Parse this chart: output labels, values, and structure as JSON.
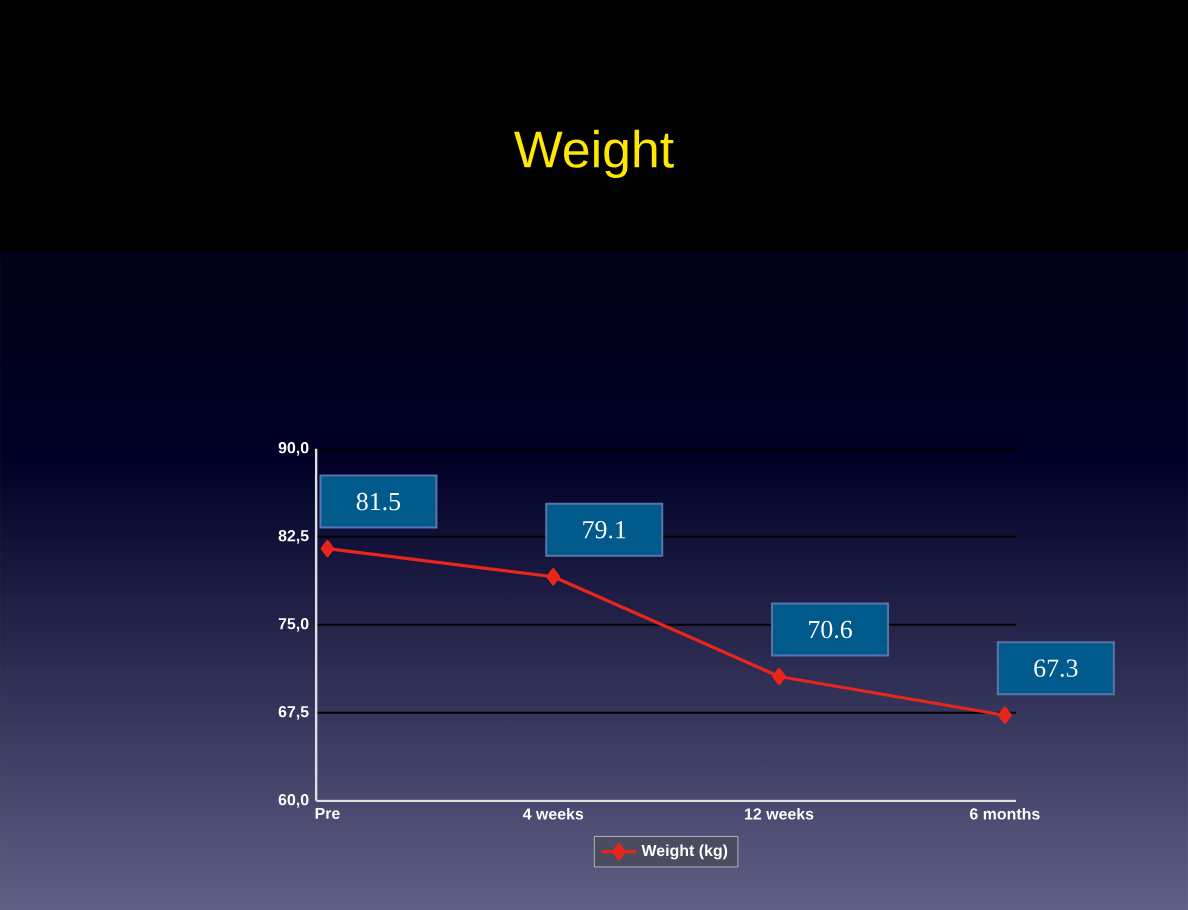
{
  "chart_data": {
    "type": "line",
    "title": "Weight",
    "categories": [
      "Pre",
      "4 weeks",
      "12 weeks",
      "6 months"
    ],
    "series": [
      {
        "name": "Weight (kg)",
        "color": "#e8261c",
        "values": [
          81.5,
          79.1,
          70.6,
          67.3
        ],
        "value_labels": [
          "81.5",
          "79.1",
          "70.6",
          "67.3"
        ]
      }
    ],
    "ylim": [
      60,
      90
    ],
    "yticks": [
      {
        "value": 60,
        "label": "60,0"
      },
      {
        "value": 67.5,
        "label": "67,5"
      },
      {
        "value": 75,
        "label": "75,0"
      },
      {
        "value": 82.5,
        "label": "82,5"
      },
      {
        "value": 90,
        "label": "90,0"
      }
    ],
    "grid": "y",
    "legend": "bottom",
    "marker": "diamond",
    "line_style": "solid"
  }
}
